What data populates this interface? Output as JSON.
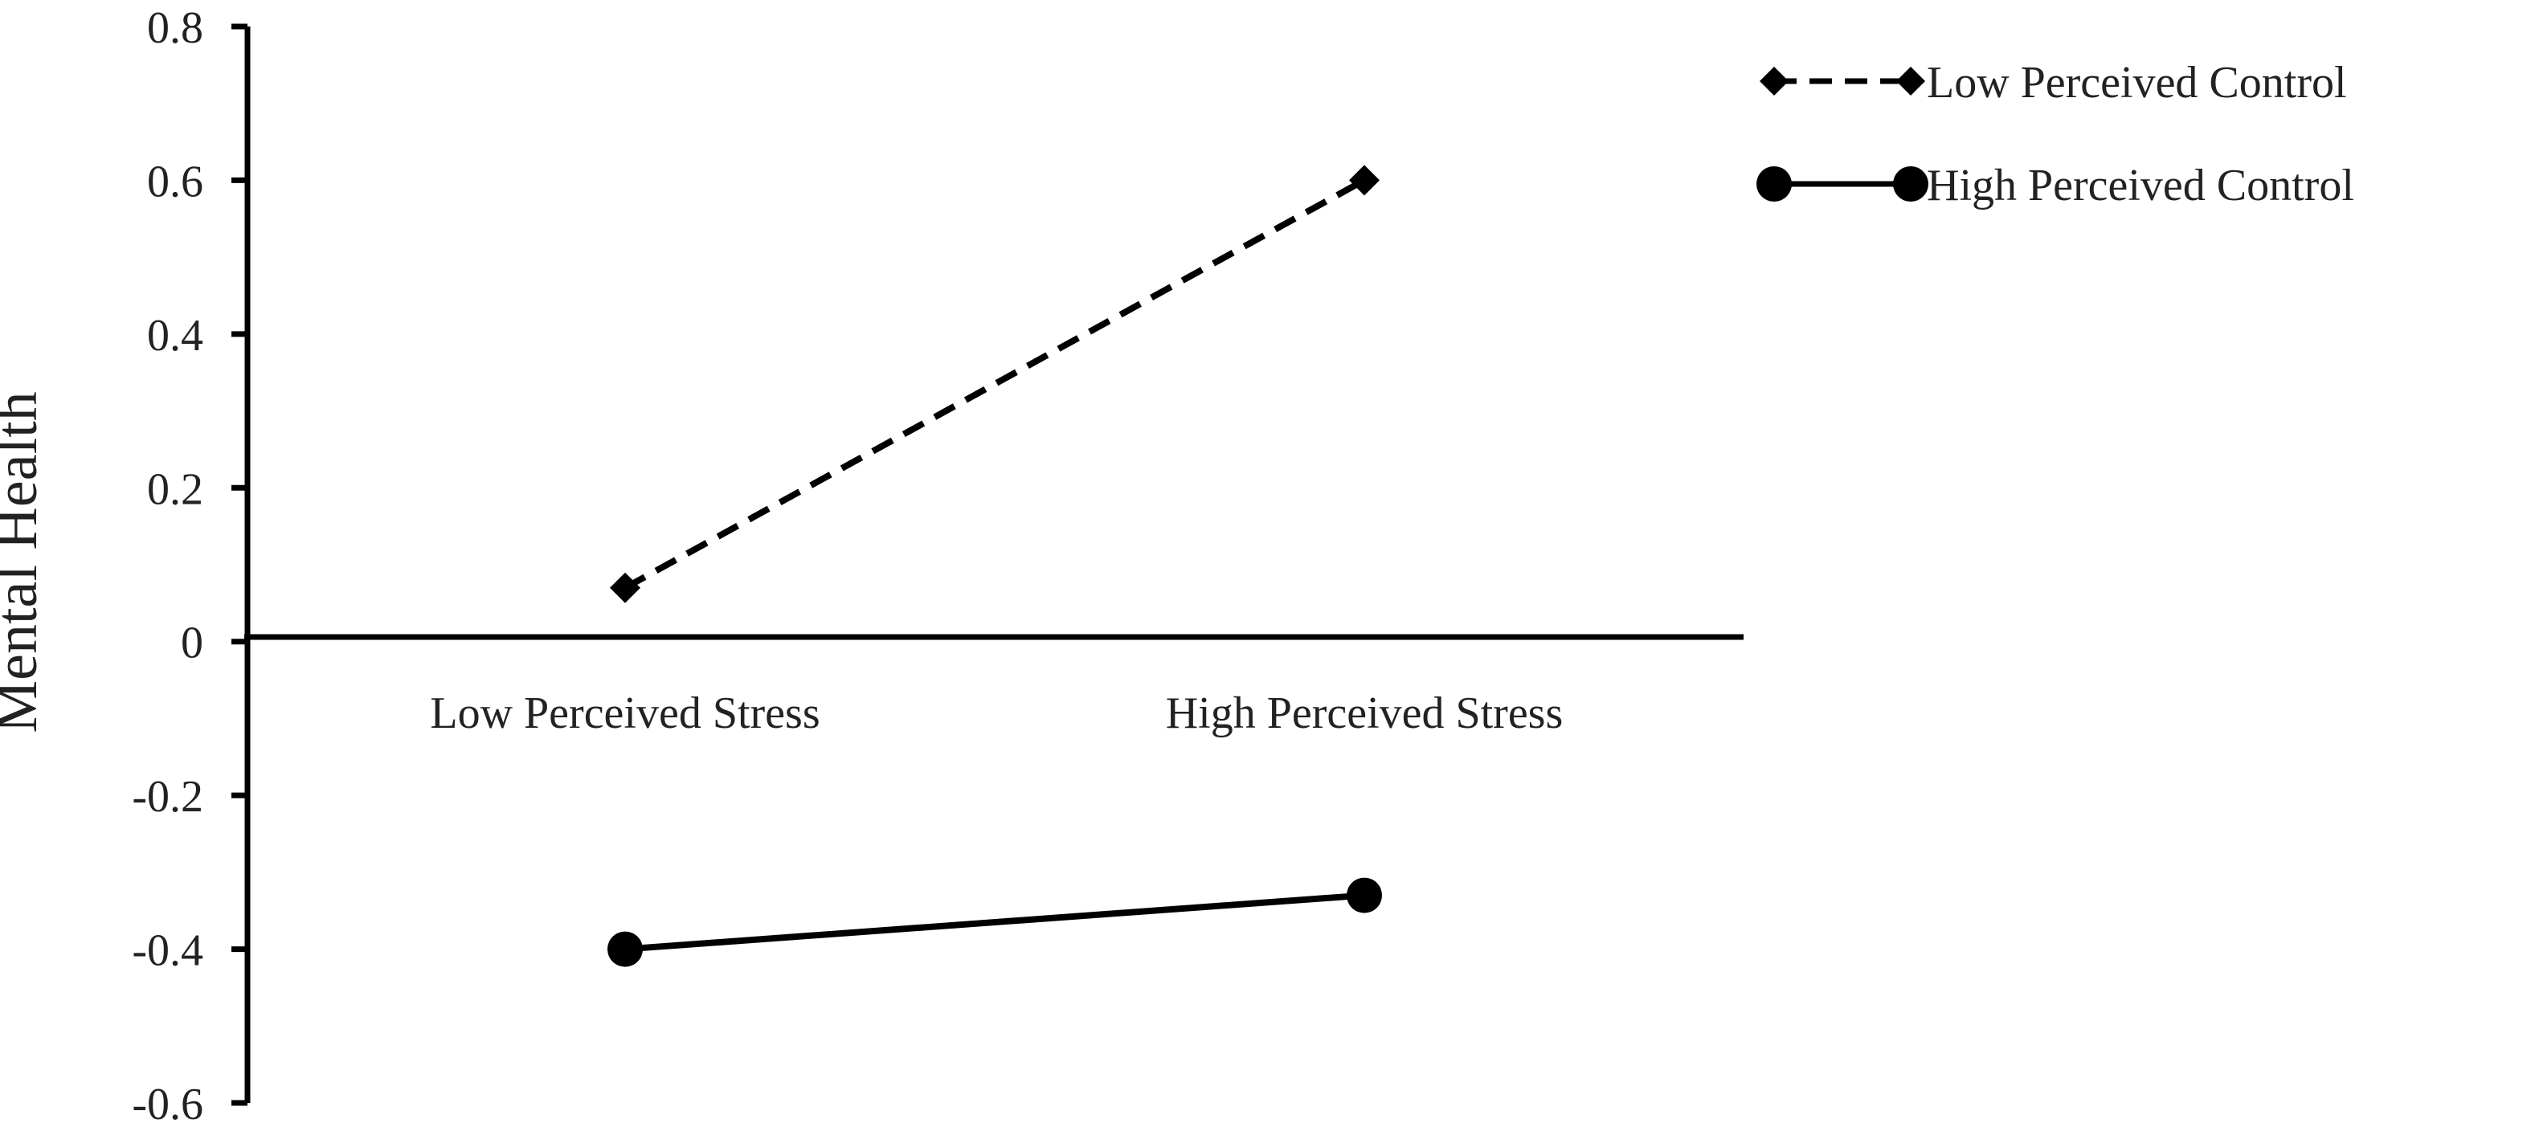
{
  "chart_data": {
    "type": "line",
    "title": "",
    "xlabel": "",
    "ylabel": "Mental Health",
    "categories": [
      "Low Perceived Stress",
      "High Perceived Stress"
    ],
    "ylim": [
      -0.6,
      0.8
    ],
    "yticks": [
      -0.6,
      -0.4,
      -0.2,
      0,
      0.2,
      0.4,
      0.6,
      0.8
    ],
    "ytick_labels": [
      "-0.6",
      "-0.4",
      "-0.2",
      "0",
      "0.2",
      "0.4",
      "0.6",
      "0.8"
    ],
    "grid": false,
    "legend_position": "top-right",
    "series": [
      {
        "name": "Low Perceived Control",
        "values": [
          0.07,
          0.6
        ],
        "line_style": "dashed",
        "marker": "diamond",
        "color": "#000000"
      },
      {
        "name": "High Perceived Control",
        "values": [
          -0.4,
          -0.33
        ],
        "line_style": "solid",
        "marker": "circle",
        "color": "#000000"
      }
    ]
  }
}
